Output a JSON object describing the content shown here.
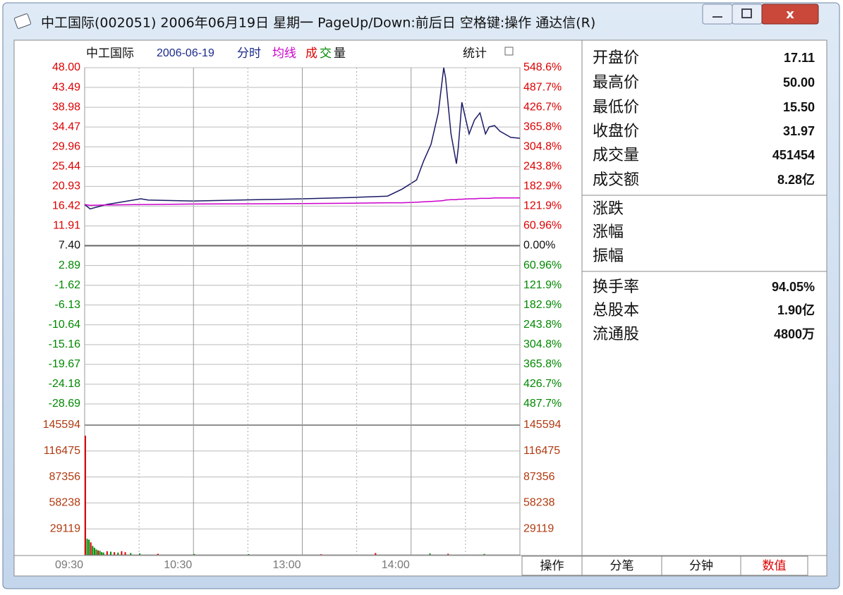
{
  "window": {
    "title": "中工国际(002051) 2006年06月19日 星期一 PageUp/Down:前后日 空格键:操作 通达信(R)"
  },
  "header": {
    "name": "中工国际",
    "date": "2006-06-19",
    "mode": "分时",
    "volume_parts": [
      "成",
      "交",
      "量"
    ],
    "stat": "统计"
  },
  "chart_data": [
    {
      "type": "line",
      "x": [
        "09:30",
        "09:33",
        "09:42",
        "10:01",
        "10:05",
        "10:30",
        "11:30",
        "13:28",
        "13:47",
        "13:55",
        "14:03",
        "14:07",
        "14:11",
        "14:15",
        "14:18",
        "14:19",
        "14:22",
        "14:25",
        "14:26",
        "14:28",
        "14:32",
        "14:35",
        "14:38",
        "14:41",
        "14:43",
        "14:46",
        "14:49",
        "14:55",
        "15:00"
      ],
      "series": [
        {
          "color": "#1a1a66",
          "values": [
            16.8,
            15.8,
            16.8,
            18.1,
            17.8,
            17.6,
            18.1,
            18.4,
            18.7,
            20.3,
            22.4,
            26.8,
            30.5,
            37.7,
            48,
            45.7,
            32.9,
            26.1,
            29.7,
            40.1,
            32.9,
            36.1,
            37.7,
            32.9,
            34.5,
            34.8,
            33.5,
            32.1,
            31.9
          ]
        },
        {
          "name": "均线",
          "color": "#cc00cc",
          "values": [
            16.8,
            16.6,
            16.7,
            16.8,
            16.8,
            16.9,
            17.0,
            17.1,
            17.2,
            17.2,
            17.3,
            17.4,
            17.5,
            17.6,
            17.7,
            17.8,
            17.9,
            17.9,
            18.0,
            18.0,
            18.1,
            18.1,
            18.2,
            18.2,
            18.2,
            18.3,
            18.3,
            18.3,
            18.3
          ]
        }
      ],
      "ylim": [
        -28.69,
        48
      ],
      "yticks": [
        {
          "value": 48,
          "label": "48.00"
        },
        43.49,
        38.98,
        34.47,
        29.96,
        25.44,
        20.93,
        16.42,
        11.91,
        {
          "value": 7.4,
          "label": "7.40"
        },
        2.89,
        -1.62,
        -6.13,
        -10.64,
        -15.16,
        -19.67,
        -24.18,
        -28.69
      ],
      "y2lim": [
        -487.7,
        548.6
      ],
      "y2ticks": [
        {
          "value": 548.6,
          "label": "548.6%"
        },
        {
          "value": 487.7,
          "label": "487.7%"
        },
        {
          "value": 426.7,
          "label": "426.7%"
        },
        {
          "value": 365.8,
          "label": "365.8%"
        },
        {
          "value": 304.8,
          "label": "304.8%"
        },
        {
          "value": 243.8,
          "label": "243.8%"
        },
        {
          "value": 182.9,
          "label": "182.9%"
        },
        {
          "value": 121.9,
          "label": "121.9%"
        },
        {
          "value": 60.96,
          "label": "60.96%"
        },
        {
          "value": 0,
          "label": "0.00%"
        },
        {
          "value": -60.96,
          "label": "60.96%"
        },
        {
          "value": -121.9,
          "label": "121.9%"
        },
        {
          "value": -182.9,
          "label": "182.9%"
        },
        {
          "value": -243.8,
          "label": "243.8%"
        },
        {
          "value": -304.8,
          "label": "304.8%"
        },
        {
          "value": -365.8,
          "label": "365.8%"
        },
        {
          "value": -426.7,
          "label": "426.7%"
        },
        {
          "value": -487.7,
          "label": "487.7%"
        }
      ],
      "grid": true
    },
    {
      "type": "bar",
      "x": [
        "09:30",
        "09:31",
        "09:32",
        "09:33",
        "09:34",
        "09:35",
        "09:36",
        "09:37",
        "09:38",
        "09:39",
        "09:40",
        "09:42",
        "09:44",
        "09:46",
        "09:48",
        "09:50",
        "09:52",
        "09:55",
        "10:00",
        "10:10",
        "10:30",
        "11:00",
        "13:10",
        "13:40",
        "14:10",
        "14:20",
        "14:40"
      ],
      "values": [
        133700,
        18000,
        17000,
        14000,
        10000,
        8000,
        6000,
        5000,
        4500,
        3000,
        2500,
        4000,
        3500,
        3000,
        2500,
        4000,
        3000,
        2000,
        1500,
        1200,
        1000,
        800,
        700,
        2000,
        1500,
        1200,
        1000
      ],
      "colors": [
        "#dd0000",
        "#008800",
        "#008800",
        "#dd0000",
        "#008800",
        "#008800",
        "#008800",
        "#dd0000",
        "#008800",
        "#008800",
        "#008800",
        "#dd0000",
        "#008800",
        "#dd0000",
        "#008800",
        "#dd0000",
        "#dd0000",
        "#008800",
        "#008800",
        "#dd0000",
        "#008800",
        "#008800",
        "#dd0000",
        "#dd0000",
        "#008800",
        "#dd0000",
        "#008800"
      ],
      "ylim": [
        0,
        145594
      ],
      "yticks": [
        29119,
        58238,
        87356,
        116475,
        145594
      ],
      "xticks": [
        "09:30",
        "10:30",
        "13:00",
        "14:00"
      ],
      "grid": true
    }
  ],
  "info": {
    "groups": [
      [
        {
          "label": "开盘价",
          "value": "17.11"
        },
        {
          "label": "最高价",
          "value": "50.00"
        },
        {
          "label": "最低价",
          "value": "15.50"
        },
        {
          "label": "收盘价",
          "value": "31.97"
        },
        {
          "label": "成交量",
          "value": "451454"
        },
        {
          "label": "成交额",
          "value": "8.28亿"
        }
      ],
      [
        {
          "label": "涨跌"
        },
        {
          "label": "涨幅"
        },
        {
          "label": "振幅"
        }
      ],
      [
        {
          "label": "换手率",
          "value": "94.05%"
        },
        {
          "label": "总股本",
          "value": "1.90亿"
        },
        {
          "label": "流通股",
          "value": "4800万"
        }
      ]
    ]
  },
  "tabs": [
    "操作",
    "分笔",
    "分钟",
    "数值"
  ]
}
